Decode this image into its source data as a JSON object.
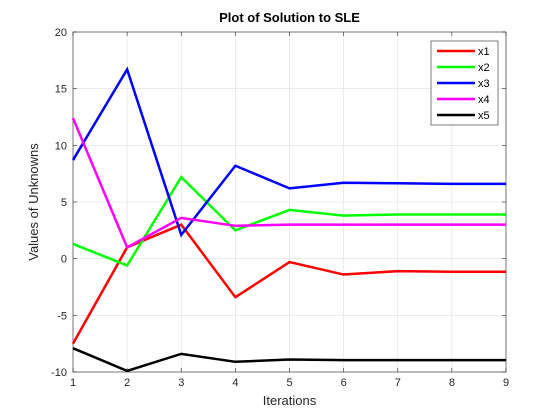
{
  "chart_data": {
    "type": "line",
    "title": "Plot of Solution to SLE",
    "xlabel": "Iterations",
    "ylabel": "Values of Unknowns",
    "x": [
      1,
      2,
      3,
      4,
      5,
      6,
      7,
      8,
      9
    ],
    "xlim": [
      1,
      9
    ],
    "ylim": [
      -10,
      20
    ],
    "xticks": [
      "1",
      "2",
      "3",
      "4",
      "5",
      "6",
      "7",
      "8",
      "9"
    ],
    "yticks": [
      "-10",
      "-5",
      "0",
      "5",
      "10",
      "15",
      "20"
    ],
    "grid": true,
    "legend_position": "top-right",
    "series": [
      {
        "name": "x1",
        "color": "#ff0000",
        "values": [
          -7.5,
          1.0,
          3.0,
          -3.4,
          -0.3,
          -1.4,
          -1.1,
          -1.15,
          -1.15
        ]
      },
      {
        "name": "x2",
        "color": "#00ff00",
        "values": [
          1.3,
          -0.6,
          7.2,
          2.5,
          4.3,
          3.8,
          3.9,
          3.9,
          3.9
        ]
      },
      {
        "name": "x3",
        "color": "#0000ff",
        "values": [
          8.7,
          16.7,
          2.1,
          8.2,
          6.2,
          6.7,
          6.65,
          6.6,
          6.6
        ]
      },
      {
        "name": "x4",
        "color": "#ff00ff",
        "values": [
          12.4,
          1.0,
          3.6,
          2.9,
          3.0,
          3.0,
          3.0,
          3.0,
          3.0
        ]
      },
      {
        "name": "x5",
        "color": "#000000",
        "values": [
          -7.9,
          -9.9,
          -8.4,
          -9.1,
          -8.9,
          -8.95,
          -8.95,
          -8.95,
          -8.95
        ]
      }
    ]
  }
}
